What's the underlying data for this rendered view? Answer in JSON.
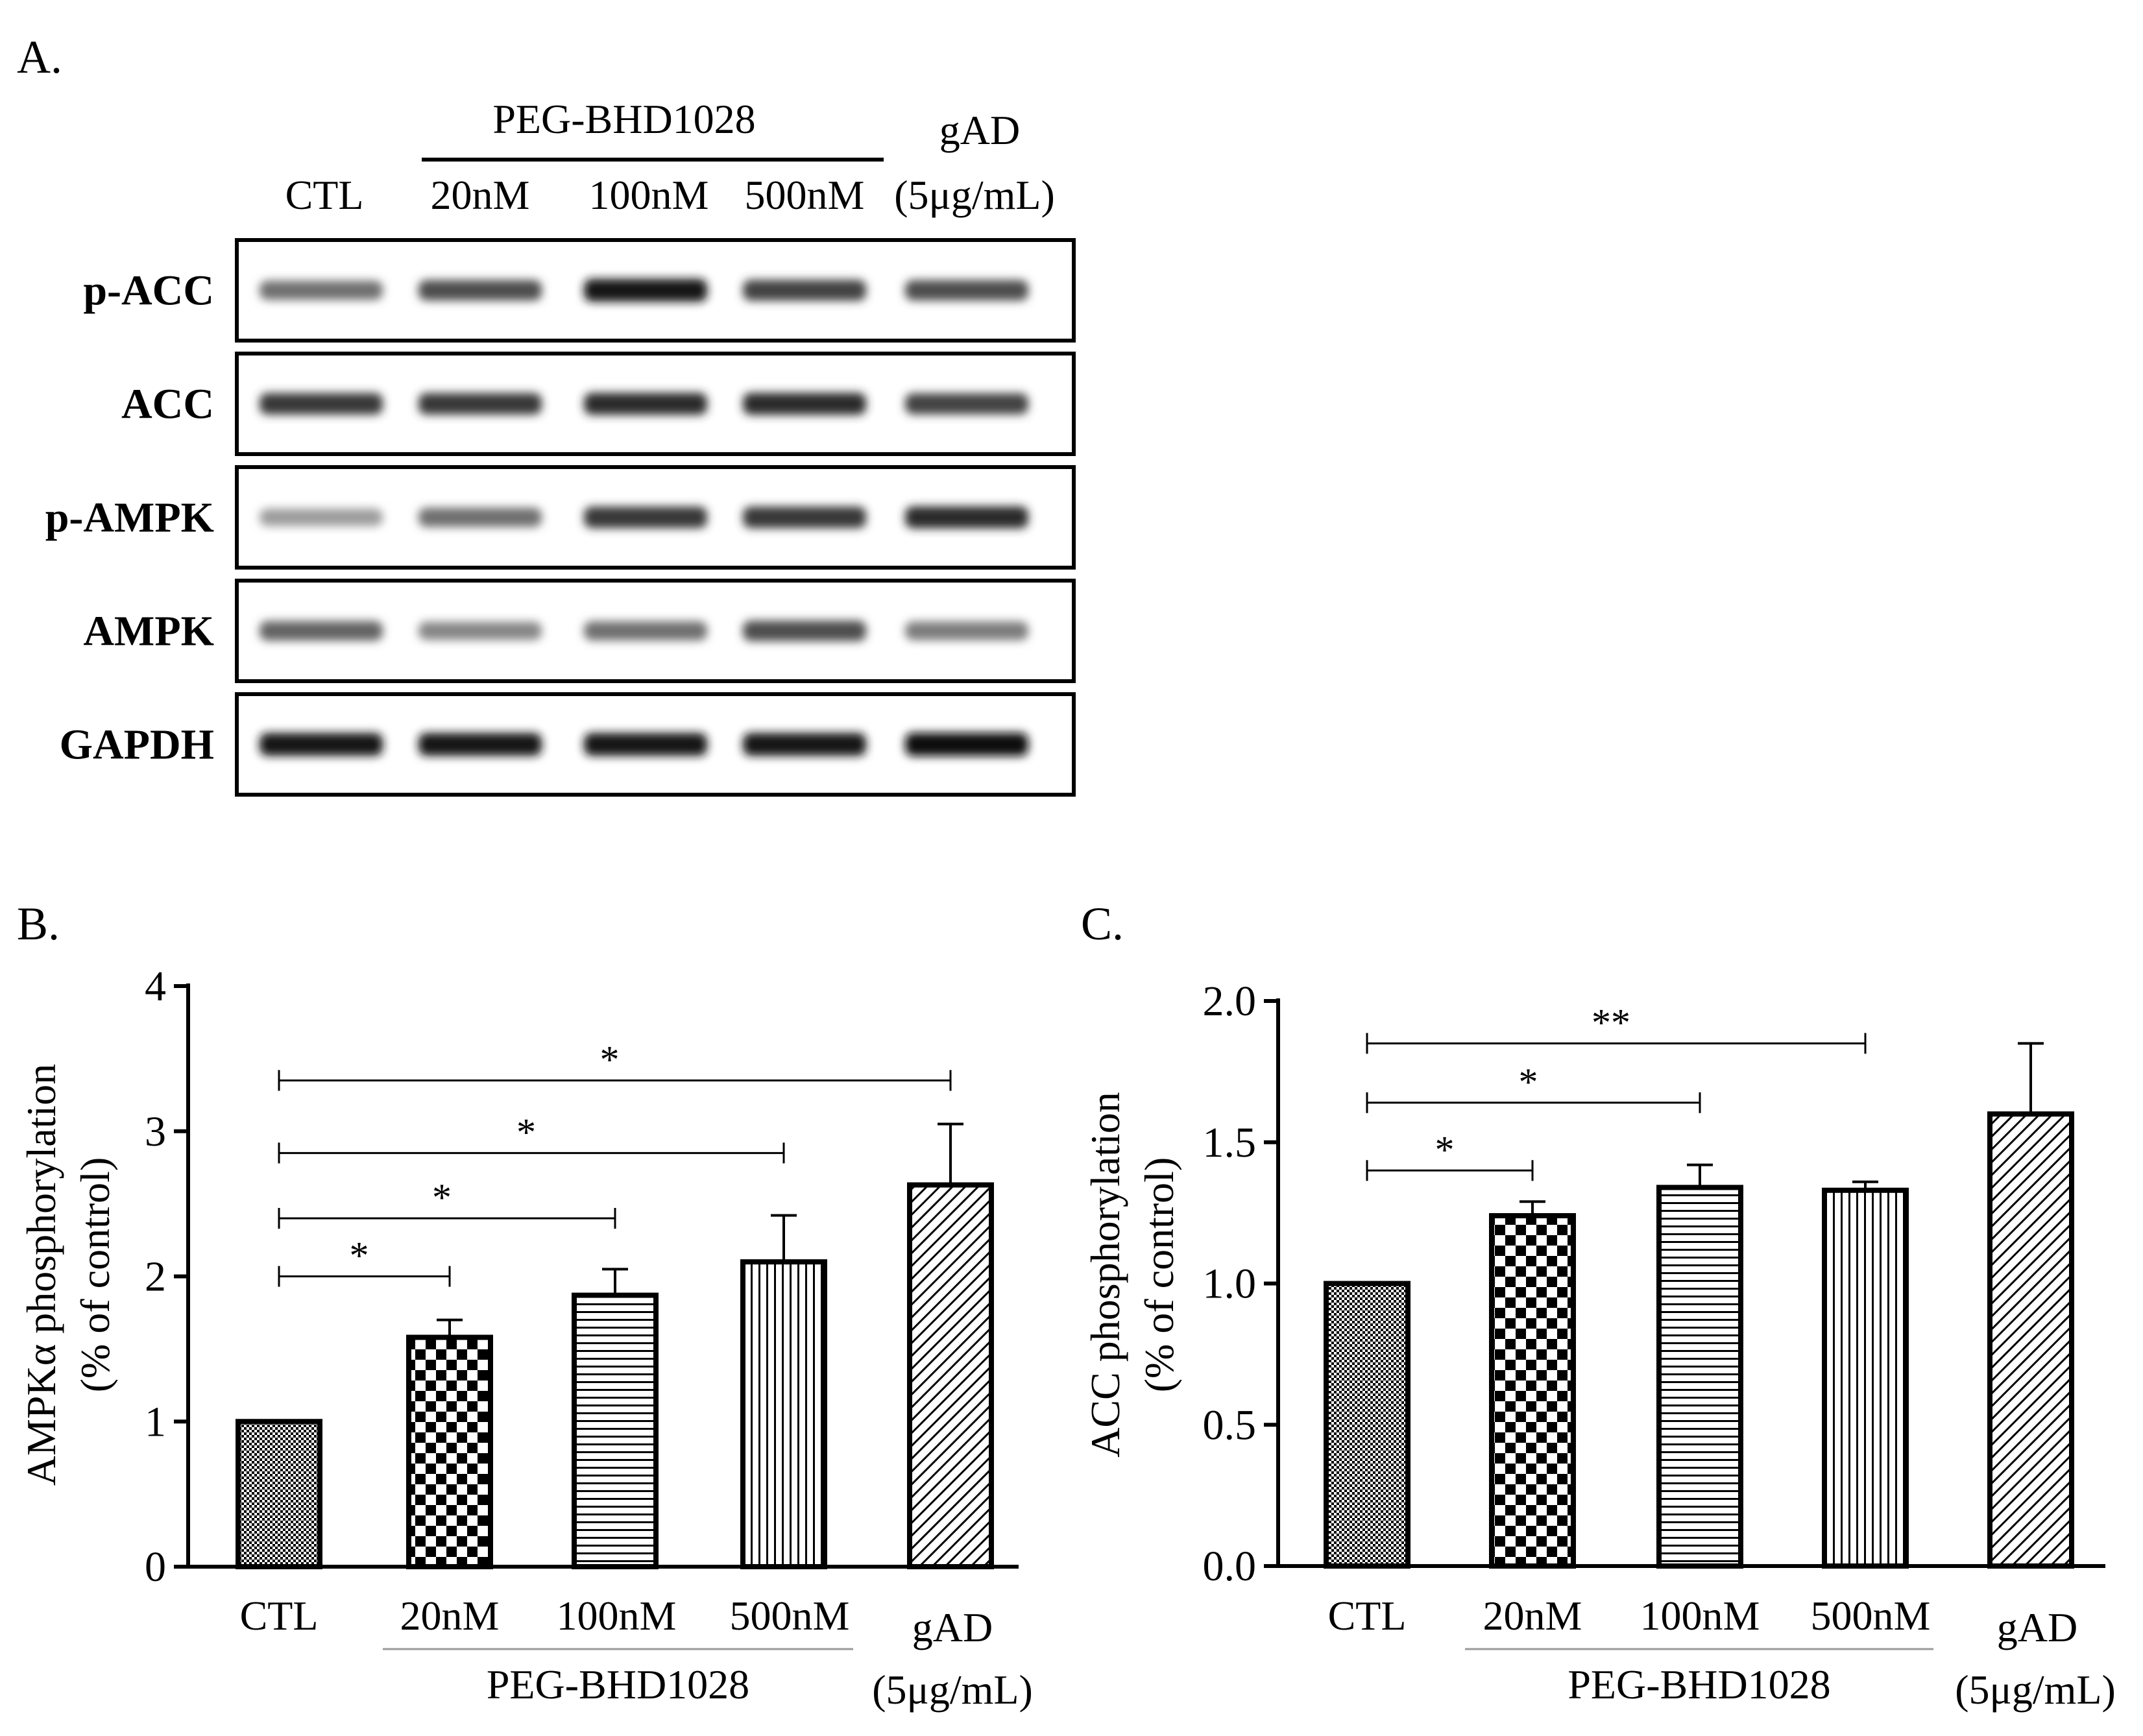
{
  "panel_a": {
    "label": "A.",
    "group_label": "PEG-BHD1028",
    "lanes": [
      "CTL",
      "20nM",
      "100nM",
      "500nM"
    ],
    "gad_label": [
      "gAD",
      "(5μg/mL)"
    ],
    "blots": [
      {
        "label": "p-ACC",
        "intensity": [
          0.55,
          0.7,
          0.95,
          0.75,
          0.7
        ]
      },
      {
        "label": "ACC",
        "intensity": [
          0.8,
          0.8,
          0.85,
          0.85,
          0.75
        ]
      },
      {
        "label": "p-AMPK",
        "intensity": [
          0.35,
          0.55,
          0.8,
          0.8,
          0.85
        ]
      },
      {
        "label": "AMPK",
        "intensity": [
          0.6,
          0.45,
          0.55,
          0.7,
          0.5
        ]
      },
      {
        "label": "GAPDH",
        "intensity": [
          0.95,
          0.95,
          0.95,
          0.95,
          1.0
        ]
      }
    ]
  },
  "chart_data": [
    {
      "panel": "B.",
      "type": "bar",
      "categories": [
        "CTL",
        "20nM",
        "100nM",
        "500nM",
        "gAD"
      ],
      "group_label": "PEG-BHD1028",
      "gad_sublabel": "(5μg/mL)",
      "values": [
        1.0,
        1.58,
        1.87,
        2.1,
        2.63
      ],
      "errors": [
        0,
        0.12,
        0.18,
        0.32,
        0.42
      ],
      "ylabel": "AMPKα phosphorylation",
      "ylabel2": "(% of control)",
      "ylim": [
        0,
        4
      ],
      "yticks": [
        "0",
        "1",
        "2",
        "3",
        "4"
      ],
      "significance": [
        {
          "from": 0,
          "to": 1,
          "y": 2.0,
          "label": "*"
        },
        {
          "from": 0,
          "to": 2,
          "y": 2.4,
          "label": "*"
        },
        {
          "from": 0,
          "to": 3,
          "y": 2.85,
          "label": "*"
        },
        {
          "from": 0,
          "to": 4,
          "y": 3.35,
          "label": "*"
        }
      ]
    },
    {
      "panel": "C.",
      "type": "bar",
      "categories": [
        "CTL",
        "20nM",
        "100nM",
        "500nM",
        "gAD"
      ],
      "group_label": "PEG-BHD1028",
      "gad_sublabel": "(5μg/mL)",
      "values": [
        1.0,
        1.24,
        1.34,
        1.33,
        1.6
      ],
      "errors": [
        0,
        0.05,
        0.08,
        0.03,
        0.25
      ],
      "ylabel": "ACC phosphorylation",
      "ylabel2": "(% of control)",
      "ylim": [
        0,
        2.0
      ],
      "yticks": [
        "0.0",
        "0.5",
        "1.0",
        "1.5",
        "2.0"
      ],
      "significance": [
        {
          "from": 0,
          "to": 1,
          "y": 1.4,
          "label": "*"
        },
        {
          "from": 0,
          "to": 2,
          "y": 1.64,
          "label": "*"
        },
        {
          "from": 0,
          "to": 3,
          "y": 1.85,
          "label": "**"
        }
      ]
    }
  ]
}
